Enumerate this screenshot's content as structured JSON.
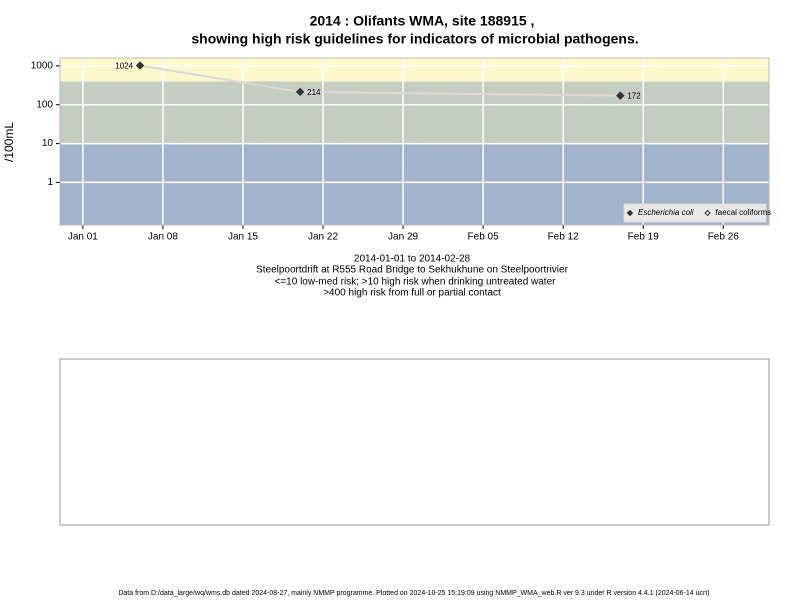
{
  "chart_data": {
    "type": "line",
    "title": [
      "2014 : Olifants WMA, site 188915 ,",
      "showing high risk guidelines for indicators of microbial pathogens."
    ],
    "ylabel": "/100mL",
    "log_y": true,
    "grid": true,
    "legend_position": "bottom-right",
    "x": [
      "2014-01-06",
      "2014-01-20",
      "2014-02-17"
    ],
    "series": [
      {
        "name": "Escherichia coli",
        "color": "#333333",
        "line_color": "#d9d9d9",
        "marker": "filled-diamond",
        "values": [
          1024,
          214,
          172
        ]
      },
      {
        "name": "faecal coliforms",
        "color": "#333333",
        "marker": "open-diamond",
        "values": [
          null,
          null,
          null
        ]
      }
    ],
    "bands": [
      {
        "max": 10,
        "color": "#a3b3cc"
      },
      {
        "min": 10,
        "max": 400,
        "color": "#c3cdc0"
      },
      {
        "min": 400,
        "color": "#fdf7cc"
      }
    ],
    "xlim": [
      "2013-12-30",
      "2014-03-02"
    ],
    "xticks": [
      {
        "value": "2014-01-01",
        "label": "Jan 01"
      },
      {
        "value": "2014-01-08",
        "label": "Jan 08"
      },
      {
        "value": "2014-01-15",
        "label": "Jan 15"
      },
      {
        "value": "2014-01-22",
        "label": "Jan 22"
      },
      {
        "value": "2014-01-29",
        "label": "Jan 29"
      },
      {
        "value": "2014-02-05",
        "label": "Feb 05"
      },
      {
        "value": "2014-02-12",
        "label": "Feb 12"
      },
      {
        "value": "2014-02-19",
        "label": "Feb 19"
      },
      {
        "value": "2014-02-26",
        "label": "Feb 26"
      }
    ],
    "ylim": [
      0.08,
      1600
    ],
    "yticks": [
      1,
      10,
      100,
      1000
    ],
    "captions": [
      "2014-01-01 to 2014-02-28",
      "Steelpoortdrift at R555 Road Bridge to Sekhukhune on Steelpoortrivier",
      "<=10 low-med risk; >10 high risk when drinking untreated water",
      ">400 high risk from full or partial contact"
    ],
    "footer": "Data from D:/data_large/wq/wms.db dated 2024-08-27, mainly NMMP programme. Plotted on 2024-10-25 15:19:09 using NMMP_WMA_web.R ver 9.3 under R version 4.4.1 (2024-06-14 ucrt)"
  }
}
